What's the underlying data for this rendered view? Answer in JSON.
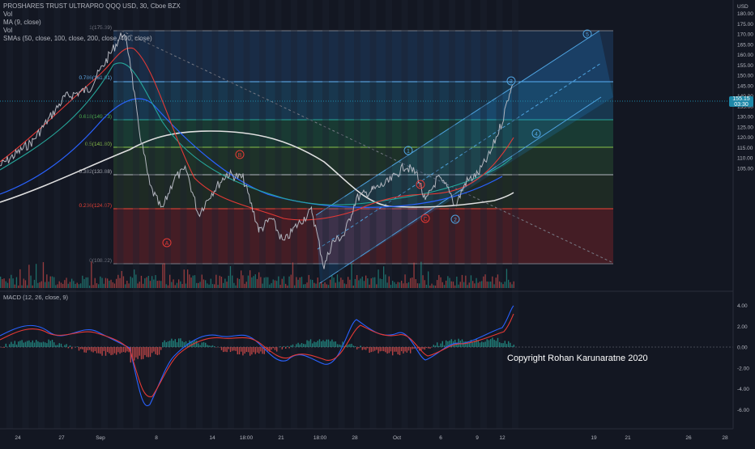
{
  "legend": {
    "title": "PROSHARES TRUST ULTRAPRO QQQ USD, 30, Cboe BZX",
    "vol1": "Vol",
    "ma": "MA (9, close)",
    "vol2": "Vol",
    "smas": "SMAs (50, close, 100, close, 200, close, 400, close)"
  },
  "price_axis": {
    "currency": "USD",
    "labels": [
      "180.00",
      "175.00",
      "170.00",
      "165.00",
      "160.00",
      "155.00",
      "150.00",
      "145.00",
      "140.00",
      "135.00",
      "130.00",
      "125.00",
      "120.00",
      "115.00",
      "110.00",
      "105.00"
    ],
    "last_price": "155.15",
    "countdown": "03:30"
  },
  "macd_axis": {
    "title": "MACD (12, 26, close, 9)",
    "labels": [
      "4.00",
      "2.00",
      "0.00",
      "-2.00",
      "-4.00",
      "-6.00"
    ]
  },
  "time_axis": [
    "24",
    "27",
    "Sep",
    "8",
    "14",
    "18:00",
    "21",
    "18:00",
    "28",
    "Oct",
    "6",
    "9",
    "12",
    "19",
    "21",
    "26",
    "28"
  ],
  "fib_levels": [
    {
      "label": "1(175.39)",
      "color": "#787b86"
    },
    {
      "label": "0.786(161.01)",
      "color": "#64b5f6"
    },
    {
      "label": "0.618(149.73)",
      "color": "#4caf50"
    },
    {
      "label": "0.5(141.80)",
      "color": "#8bc34a"
    },
    {
      "label": "0.382(133.88)",
      "color": "#b2b5be"
    },
    {
      "label": "0.236(124.07)",
      "color": "#f44336"
    },
    {
      "label": "0(108.22)",
      "color": "#787b86"
    }
  ],
  "wave_labels": [
    "B",
    "A",
    "1",
    "B",
    "C",
    "2",
    "3",
    "4",
    "5"
  ],
  "copyright": "Copyright Rohan Karunaratne 2020"
}
